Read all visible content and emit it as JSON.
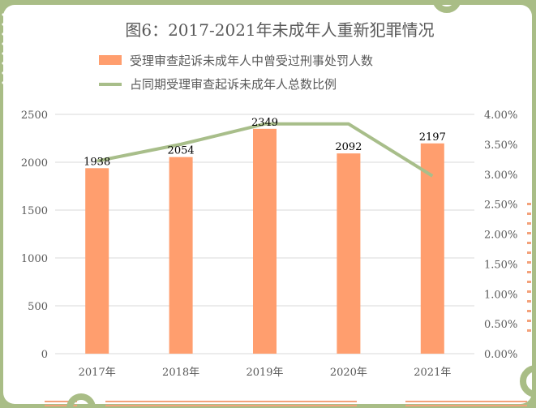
{
  "colors": {
    "frame_green": "#a9bd86",
    "frame_orange": "#f4a27b",
    "bar": "#ff9e6e",
    "line": "#a8be8a",
    "grid": "#d9d9d9",
    "text": "#595959"
  },
  "chart_data": {
    "type": "bar",
    "title": "图6：2017-2021年未成年人重新犯罪情况",
    "categories": [
      "2017年",
      "2018年",
      "2019年",
      "2020年",
      "2021年"
    ],
    "series": [
      {
        "name": "受理审查起诉未成年人中曾受过刑事处罚人数",
        "type": "bar",
        "axis": "left",
        "values": [
          1938,
          2054,
          2349,
          2092,
          2197
        ],
        "data_labels": [
          "1938",
          "2054",
          "2349",
          "2092",
          "2197"
        ]
      },
      {
        "name": "占同期受理审查起诉未成年人总数比例",
        "type": "line",
        "axis": "right",
        "values": [
          0.0322,
          0.035,
          0.0384,
          0.0384,
          0.0297
        ]
      }
    ],
    "y_left": {
      "ylim": [
        0,
        2500
      ],
      "ticks": [
        "0",
        "500",
        "1000",
        "1500",
        "2000",
        "2500"
      ]
    },
    "y_right": {
      "ylim": [
        0,
        0.04
      ],
      "ticks": [
        "0.00%",
        "0.50%",
        "1.00%",
        "1.50%",
        "2.00%",
        "2.50%",
        "3.00%",
        "3.50%",
        "4.00%"
      ]
    },
    "grid": true,
    "legend_position": "top"
  }
}
